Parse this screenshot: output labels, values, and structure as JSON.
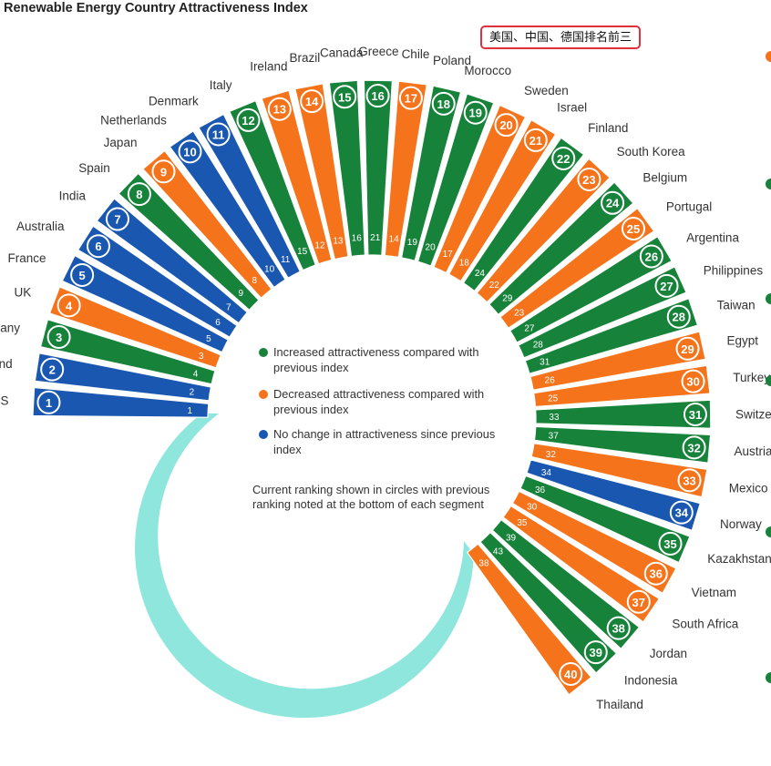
{
  "title": "Renewable Energy Country Attractiveness Index",
  "annotation": "美国、中国、德国排名前三",
  "colors": {
    "increased": "#17823a",
    "decreased": "#f5731b",
    "no_change": "#1957b0",
    "ring": "#8ee6dc",
    "annotation_border": "#e0303c"
  },
  "legend": [
    {
      "key": "increased",
      "label": "Increased attractiveness compared with previous index"
    },
    {
      "key": "decreased",
      "label": "Decreased attractiveness compared with previous index"
    },
    {
      "key": "no_change",
      "label": "No change in attractiveness since previous index"
    }
  ],
  "caption": "Current ranking shown in circles with previous ranking noted at the bottom of each segment",
  "chart_data": {
    "type": "radial-bar",
    "title": "Renewable Energy Country Attractiveness Index",
    "series_fields": [
      "country",
      "current_rank",
      "previous_rank",
      "change"
    ],
    "rows": [
      {
        "country": "US",
        "current_rank": 1,
        "previous_rank": 1,
        "change": "no_change"
      },
      {
        "country": "China Mainland",
        "current_rank": 2,
        "previous_rank": 2,
        "change": "no_change"
      },
      {
        "country": "Germany",
        "current_rank": 3,
        "previous_rank": 4,
        "change": "increased"
      },
      {
        "country": "UK",
        "current_rank": 4,
        "previous_rank": 3,
        "change": "decreased"
      },
      {
        "country": "France",
        "current_rank": 5,
        "previous_rank": 5,
        "change": "no_change"
      },
      {
        "country": "Australia",
        "current_rank": 6,
        "previous_rank": 6,
        "change": "no_change"
      },
      {
        "country": "India",
        "current_rank": 7,
        "previous_rank": 7,
        "change": "no_change"
      },
      {
        "country": "Spain",
        "current_rank": 8,
        "previous_rank": 9,
        "change": "increased"
      },
      {
        "country": "Japan",
        "current_rank": 9,
        "previous_rank": 8,
        "change": "decreased"
      },
      {
        "country": "Netherlands",
        "current_rank": 10,
        "previous_rank": 10,
        "change": "no_change"
      },
      {
        "country": "Denmark",
        "current_rank": 11,
        "previous_rank": 11,
        "change": "no_change"
      },
      {
        "country": "Italy",
        "current_rank": 12,
        "previous_rank": 15,
        "change": "increased"
      },
      {
        "country": "Ireland",
        "current_rank": 13,
        "previous_rank": 12,
        "change": "decreased"
      },
      {
        "country": "Brazil",
        "current_rank": 14,
        "previous_rank": 13,
        "change": "decreased"
      },
      {
        "country": "Canada",
        "current_rank": 15,
        "previous_rank": 16,
        "change": "increased"
      },
      {
        "country": "Greece",
        "current_rank": 16,
        "previous_rank": 21,
        "change": "increased"
      },
      {
        "country": "Chile",
        "current_rank": 17,
        "previous_rank": 14,
        "change": "decreased"
      },
      {
        "country": "Poland",
        "current_rank": 18,
        "previous_rank": 19,
        "change": "increased"
      },
      {
        "country": "Morocco",
        "current_rank": 19,
        "previous_rank": 20,
        "change": "increased"
      },
      {
        "country": "Sweden",
        "current_rank": 20,
        "previous_rank": 17,
        "change": "decreased"
      },
      {
        "country": "Israel",
        "current_rank": 21,
        "previous_rank": 18,
        "change": "decreased"
      },
      {
        "country": "Finland",
        "current_rank": 22,
        "previous_rank": 24,
        "change": "increased"
      },
      {
        "country": "South Korea",
        "current_rank": 23,
        "previous_rank": 22,
        "change": "decreased"
      },
      {
        "country": "Belgium",
        "current_rank": 24,
        "previous_rank": 29,
        "change": "increased"
      },
      {
        "country": "Portugal",
        "current_rank": 25,
        "previous_rank": 23,
        "change": "decreased"
      },
      {
        "country": "Argentina",
        "current_rank": 26,
        "previous_rank": 27,
        "change": "increased"
      },
      {
        "country": "Philippines",
        "current_rank": 27,
        "previous_rank": 28,
        "change": "increased"
      },
      {
        "country": "Taiwan",
        "current_rank": 28,
        "previous_rank": 31,
        "change": "increased"
      },
      {
        "country": "Egypt",
        "current_rank": 29,
        "previous_rank": 26,
        "change": "decreased"
      },
      {
        "country": "Turkey",
        "current_rank": 30,
        "previous_rank": 25,
        "change": "decreased"
      },
      {
        "country": "Switzerland",
        "current_rank": 31,
        "previous_rank": 33,
        "change": "increased"
      },
      {
        "country": "Austria",
        "current_rank": 32,
        "previous_rank": 37,
        "change": "increased"
      },
      {
        "country": "Mexico",
        "current_rank": 33,
        "previous_rank": 32,
        "change": "decreased"
      },
      {
        "country": "Norway",
        "current_rank": 34,
        "previous_rank": 34,
        "change": "no_change"
      },
      {
        "country": "Kazakhstan",
        "current_rank": 35,
        "previous_rank": 36,
        "change": "increased"
      },
      {
        "country": "Vietnam",
        "current_rank": 36,
        "previous_rank": 30,
        "change": "decreased"
      },
      {
        "country": "South Africa",
        "current_rank": 37,
        "previous_rank": 35,
        "change": "decreased"
      },
      {
        "country": "Jordan",
        "current_rank": 38,
        "previous_rank": 39,
        "change": "increased"
      },
      {
        "country": "Indonesia",
        "current_rank": 39,
        "previous_rank": 43,
        "change": "increased"
      },
      {
        "country": "Thailand",
        "current_rank": 40,
        "previous_rank": 38,
        "change": "decreased"
      }
    ]
  }
}
